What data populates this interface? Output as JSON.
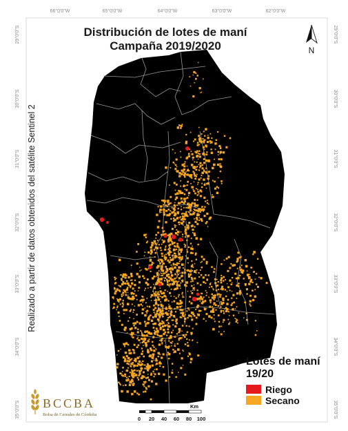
{
  "map": {
    "title_line1": "Distribución de lotes de maní",
    "title_line2": "Campaña 2019/2020",
    "side_note": "Realizado a partir de datos obtenidos del satélite Sentinel 2",
    "north_label": "N",
    "longitude_ticks": [
      "66°0'0\"W",
      "65°0'0\"W",
      "64°0'0\"W",
      "63°0'0\"W",
      "62°0'0\"W"
    ],
    "latitude_ticks": [
      "29°0'0\"S",
      "30°0'0\"S",
      "31°0'0\"S",
      "32°0'0\"S",
      "33°0'0\"S",
      "34°0'0\"S",
      "35°0'0\"S"
    ],
    "colors": {
      "province_fill": "#000000",
      "boundary": "#9a9a9a",
      "riego": "#e41a1c",
      "secano": "#f5a623"
    }
  },
  "legend": {
    "title_line1": "Lotes de maní",
    "title_line2": "19/20",
    "items": [
      {
        "label": "Riego",
        "color": "#e41a1c"
      },
      {
        "label": "Secano",
        "color": "#f5a623"
      }
    ]
  },
  "scale": {
    "labels": [
      "0",
      "20",
      "40",
      "60",
      "80",
      "100"
    ],
    "unit": "Km"
  },
  "logo": {
    "name": "BCCBA",
    "subtitle": "Bolsa de Cereales de Córdoba"
  }
}
